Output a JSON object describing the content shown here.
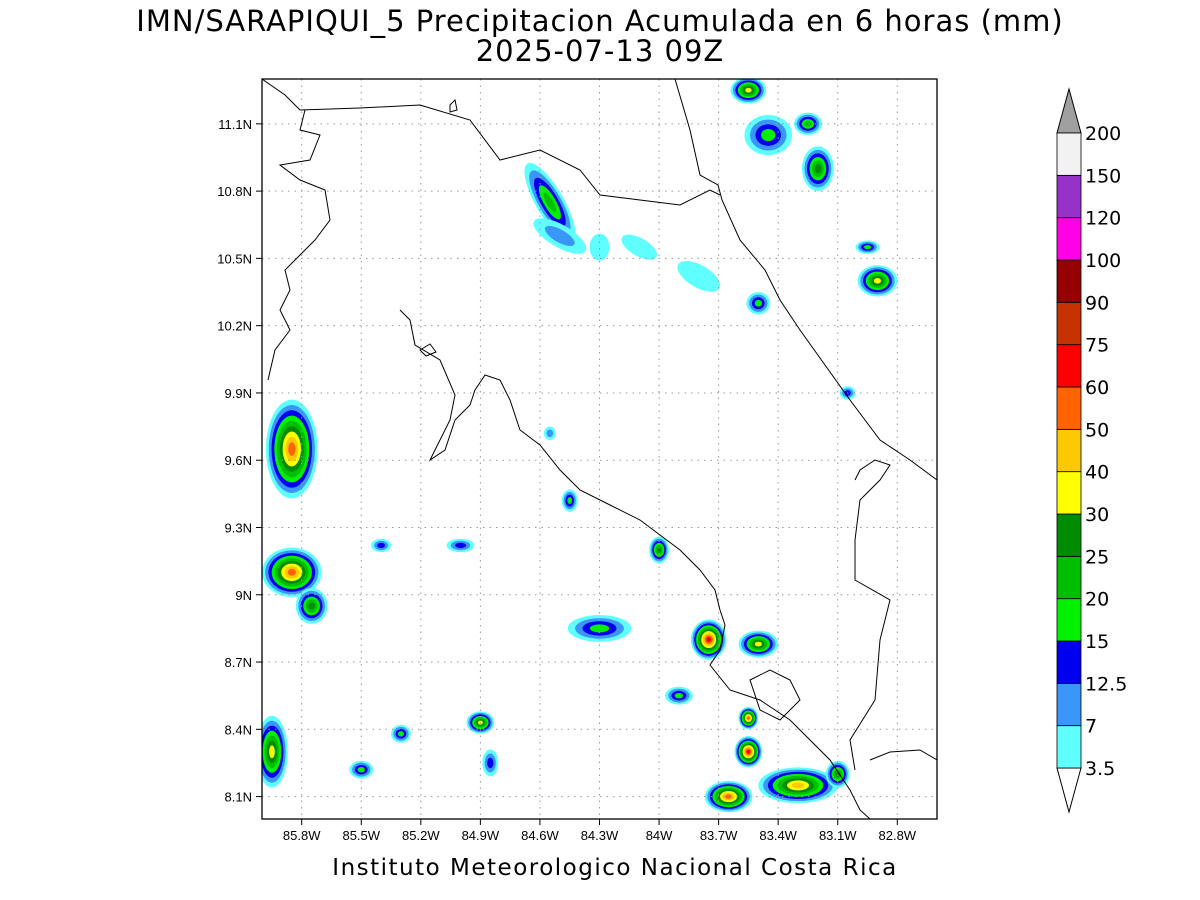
{
  "header": {
    "title_line1": "IMN/SARAPIQUI_5 Precipitacion Acumulada en 6 horas (mm)",
    "title_line2": "2025-07-13 09Z"
  },
  "footer": {
    "credit": "Instituto Meteorologico Nacional Costa Rica"
  },
  "map": {
    "lon_range": [
      -86.0,
      -82.6
    ],
    "lat_range": [
      8.0,
      11.3
    ],
    "lon_ticks": [
      {
        "value": -85.8,
        "label": "85.8W"
      },
      {
        "value": -85.5,
        "label": "85.5W"
      },
      {
        "value": -85.2,
        "label": "85.2W"
      },
      {
        "value": -84.9,
        "label": "84.9W"
      },
      {
        "value": -84.6,
        "label": "84.6W"
      },
      {
        "value": -84.3,
        "label": "84.3W"
      },
      {
        "value": -84.0,
        "label": "84W"
      },
      {
        "value": -83.7,
        "label": "83.7W"
      },
      {
        "value": -83.4,
        "label": "83.4W"
      },
      {
        "value": -83.1,
        "label": "83.1W"
      },
      {
        "value": -82.8,
        "label": "82.8W"
      }
    ],
    "lat_ticks": [
      {
        "value": 8.1,
        "label": "8.1N"
      },
      {
        "value": 8.4,
        "label": "8.4N"
      },
      {
        "value": 8.7,
        "label": "8.7N"
      },
      {
        "value": 9.0,
        "label": "9N"
      },
      {
        "value": 9.3,
        "label": "9.3N"
      },
      {
        "value": 9.6,
        "label": "9.6N"
      },
      {
        "value": 9.9,
        "label": "9.9N"
      },
      {
        "value": 10.2,
        "label": "10.2N"
      },
      {
        "value": 10.5,
        "label": "10.5N"
      },
      {
        "value": 10.8,
        "label": "10.8N"
      },
      {
        "value": 11.1,
        "label": "11.1N"
      }
    ],
    "grid": true,
    "precip_cells": [
      {
        "lon": -84.55,
        "lat": 10.75,
        "rx": 0.07,
        "ry": 0.2,
        "rot": -30,
        "mm": 25
      },
      {
        "lon": -84.5,
        "lat": 10.6,
        "rx": 0.15,
        "ry": 0.05,
        "rot": 30,
        "mm": 12.5
      },
      {
        "lon": -84.3,
        "lat": 10.55,
        "rx": 0.05,
        "ry": 0.06,
        "rot": 0,
        "mm": 7
      },
      {
        "lon": -84.1,
        "lat": 10.55,
        "rx": 0.1,
        "ry": 0.04,
        "rot": 30,
        "mm": 7
      },
      {
        "lon": -83.8,
        "lat": 10.42,
        "rx": 0.12,
        "ry": 0.05,
        "rot": 30,
        "mm": 7
      },
      {
        "lon": -83.5,
        "lat": 10.3,
        "rx": 0.06,
        "ry": 0.05,
        "rot": 0,
        "mm": 20
      },
      {
        "lon": -83.45,
        "lat": 11.05,
        "rx": 0.12,
        "ry": 0.09,
        "rot": 0,
        "mm": 20
      },
      {
        "lon": -83.25,
        "lat": 11.1,
        "rx": 0.07,
        "ry": 0.05,
        "rot": 0,
        "mm": 25
      },
      {
        "lon": -83.2,
        "lat": 10.9,
        "rx": 0.08,
        "ry": 0.1,
        "rot": 0,
        "mm": 30
      },
      {
        "lon": -83.55,
        "lat": 11.25,
        "rx": 0.09,
        "ry": 0.06,
        "rot": 0,
        "mm": 40
      },
      {
        "lon": -82.9,
        "lat": 10.4,
        "rx": 0.1,
        "ry": 0.07,
        "rot": 0,
        "mm": 40
      },
      {
        "lon": -82.95,
        "lat": 10.55,
        "rx": 0.06,
        "ry": 0.03,
        "rot": 0,
        "mm": 20
      },
      {
        "lon": -83.05,
        "lat": 9.9,
        "rx": 0.04,
        "ry": 0.03,
        "rot": 0,
        "mm": 15
      },
      {
        "lon": -85.85,
        "lat": 9.65,
        "rx": 0.13,
        "ry": 0.22,
        "rot": 0,
        "mm": 60
      },
      {
        "lon": -85.85,
        "lat": 9.1,
        "rx": 0.15,
        "ry": 0.11,
        "rot": 0,
        "mm": 60
      },
      {
        "lon": -85.75,
        "lat": 8.95,
        "rx": 0.08,
        "ry": 0.08,
        "rot": 0,
        "mm": 30
      },
      {
        "lon": -85.95,
        "lat": 8.3,
        "rx": 0.08,
        "ry": 0.16,
        "rot": 0,
        "mm": 40
      },
      {
        "lon": -84.9,
        "lat": 8.43,
        "rx": 0.07,
        "ry": 0.05,
        "rot": 0,
        "mm": 40
      },
      {
        "lon": -85.3,
        "lat": 8.38,
        "rx": 0.05,
        "ry": 0.04,
        "rot": 0,
        "mm": 20
      },
      {
        "lon": -85.5,
        "lat": 8.22,
        "rx": 0.06,
        "ry": 0.04,
        "rot": 0,
        "mm": 20
      },
      {
        "lon": -84.85,
        "lat": 8.25,
        "rx": 0.04,
        "ry": 0.06,
        "rot": 0,
        "mm": 15
      },
      {
        "lon": -84.45,
        "lat": 9.42,
        "rx": 0.04,
        "ry": 0.05,
        "rot": 0,
        "mm": 20
      },
      {
        "lon": -84.55,
        "lat": 9.72,
        "rx": 0.03,
        "ry": 0.03,
        "rot": 0,
        "mm": 12.5
      },
      {
        "lon": -84.0,
        "lat": 9.2,
        "rx": 0.05,
        "ry": 0.06,
        "rot": 0,
        "mm": 30
      },
      {
        "lon": -84.3,
        "lat": 8.85,
        "rx": 0.16,
        "ry": 0.06,
        "rot": 0,
        "mm": 20
      },
      {
        "lon": -83.75,
        "lat": 8.8,
        "rx": 0.09,
        "ry": 0.09,
        "rot": 0,
        "mm": 75
      },
      {
        "lon": -83.5,
        "lat": 8.78,
        "rx": 0.1,
        "ry": 0.06,
        "rot": 0,
        "mm": 40
      },
      {
        "lon": -83.55,
        "lat": 8.45,
        "rx": 0.05,
        "ry": 0.05,
        "rot": 0,
        "mm": 60
      },
      {
        "lon": -83.55,
        "lat": 8.3,
        "rx": 0.07,
        "ry": 0.07,
        "rot": 0,
        "mm": 75
      },
      {
        "lon": -83.65,
        "lat": 8.1,
        "rx": 0.12,
        "ry": 0.07,
        "rot": 0,
        "mm": 60
      },
      {
        "lon": -83.3,
        "lat": 8.15,
        "rx": 0.2,
        "ry": 0.08,
        "rot": 0,
        "mm": 50
      },
      {
        "lon": -83.1,
        "lat": 8.2,
        "rx": 0.06,
        "ry": 0.06,
        "rot": 0,
        "mm": 30
      },
      {
        "lon": -83.9,
        "lat": 8.55,
        "rx": 0.07,
        "ry": 0.04,
        "rot": 0,
        "mm": 20
      },
      {
        "lon": -85.4,
        "lat": 9.22,
        "rx": 0.05,
        "ry": 0.03,
        "rot": 0,
        "mm": 15
      },
      {
        "lon": -85.0,
        "lat": 9.22,
        "rx": 0.07,
        "ry": 0.03,
        "rot": 0,
        "mm": 15
      }
    ]
  },
  "colorbar": {
    "levels": [
      {
        "label": "3.5",
        "color": "#ffffff"
      },
      {
        "label": "7",
        "color": "#5fffff"
      },
      {
        "label": "12.5",
        "color": "#3a96f8"
      },
      {
        "label": "15",
        "color": "#0000f0"
      },
      {
        "label": "20",
        "color": "#00f000"
      },
      {
        "label": "25",
        "color": "#00be00"
      },
      {
        "label": "30",
        "color": "#008c00"
      },
      {
        "label": "40",
        "color": "#ffff00"
      },
      {
        "label": "50",
        "color": "#ffc800"
      },
      {
        "label": "60",
        "color": "#ff6400"
      },
      {
        "label": "75",
        "color": "#ff0000"
      },
      {
        "label": "90",
        "color": "#c83200"
      },
      {
        "label": "100",
        "color": "#960000"
      },
      {
        "label": "120",
        "color": "#ff00e6"
      },
      {
        "label": "150",
        "color": "#9632c8"
      },
      {
        "label": "200",
        "color": "#f2f2f2"
      }
    ],
    "top_arrow_color": "#a0a0a0",
    "bottom_arrow_color": "#ffffff"
  }
}
